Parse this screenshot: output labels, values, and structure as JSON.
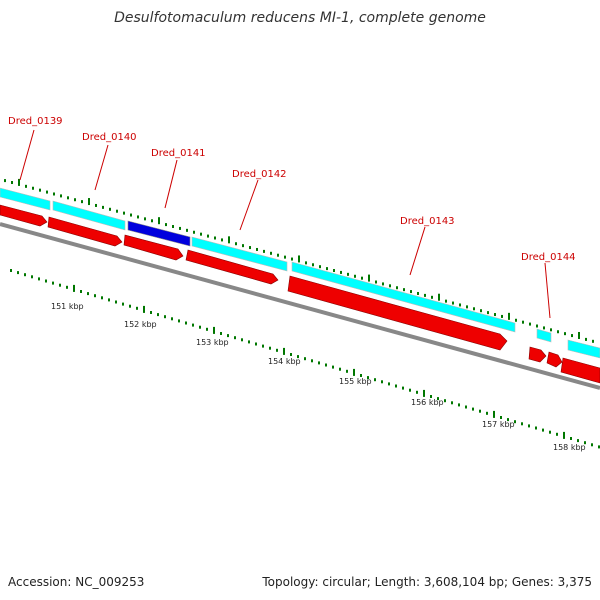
{
  "title": "Desulfotomaculum reducens MI-1, complete genome",
  "footer": {
    "accession": "Accession: NC_009253",
    "topology": "Topology: circular; Length: 3,608,104 bp; Genes: 3,375"
  },
  "colors": {
    "forward_gene": "#00ffff",
    "forward_gene_highlight": "#0000dd",
    "reverse_gene": "#ee0000",
    "backbone": "#888888",
    "tick": "#007700",
    "label": "#cc0000"
  },
  "genes": [
    {
      "id": "Dred_0139",
      "label": "Dred_0139"
    },
    {
      "id": "Dred_0140",
      "label": "Dred_0140"
    },
    {
      "id": "Dred_0141",
      "label": "Dred_0141",
      "highlight": true
    },
    {
      "id": "Dred_0142",
      "label": "Dred_0142"
    },
    {
      "id": "Dred_0143",
      "label": "Dred_0143"
    },
    {
      "id": "Dred_0144",
      "label": "Dred_0144"
    }
  ],
  "kbp_ticks": [
    {
      "label": "151 kbp"
    },
    {
      "label": "152 kbp"
    },
    {
      "label": "153 kbp"
    },
    {
      "label": "154 kbp"
    },
    {
      "label": "155 kbp"
    },
    {
      "label": "156 kbp"
    },
    {
      "label": "157 kbp"
    },
    {
      "label": "158 kbp"
    }
  ]
}
